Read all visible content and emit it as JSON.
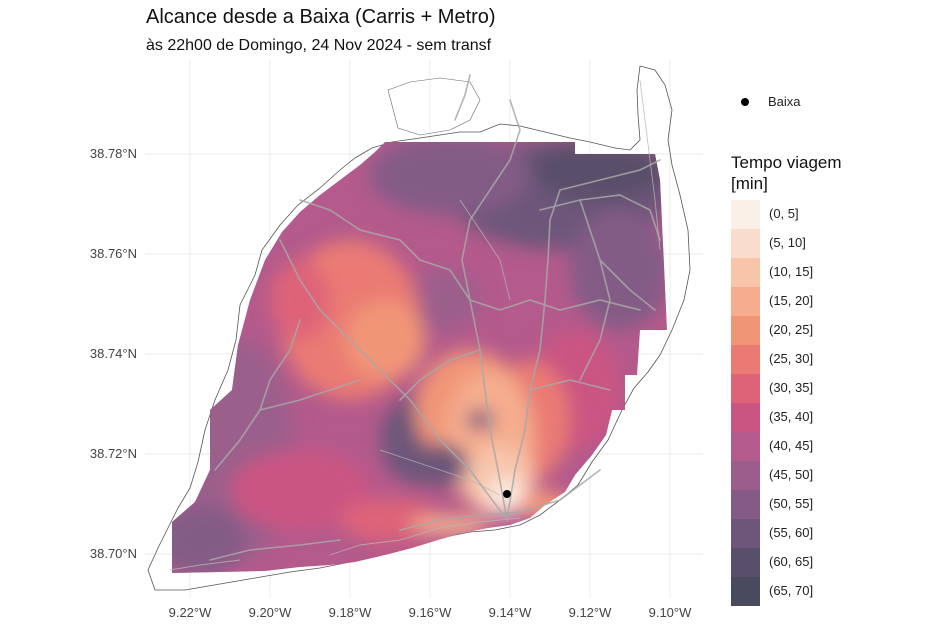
{
  "title": "Alcance desde a Baixa (Carris + Metro)",
  "subtitle": "às 22h00 de Domingo, 24 Nov 2024 - sem transf",
  "axes": {
    "y_ticks": [
      "38.78°N",
      "38.76°N",
      "38.74°N",
      "38.72°N",
      "38.70°N"
    ],
    "x_ticks": [
      "9.22°W",
      "9.20°W",
      "9.18°W",
      "9.16°W",
      "9.14°W",
      "9.12°W",
      "9.10°W"
    ]
  },
  "point_legend": {
    "label": "Baixa"
  },
  "legend": {
    "title_line1": "Tempo viagem",
    "title_line2": "[min]",
    "items": [
      {
        "label": "(0, 5]",
        "color": "#fbf0e8"
      },
      {
        "label": "(5, 10]",
        "color": "#f9dccb"
      },
      {
        "label": "(10, 15]",
        "color": "#f8c5ab"
      },
      {
        "label": "(15, 20]",
        "color": "#f5ad8e"
      },
      {
        "label": "(20, 25]",
        "color": "#f19577"
      },
      {
        "label": "(25, 30]",
        "color": "#ea7a73"
      },
      {
        "label": "(30, 35]",
        "color": "#de6379"
      },
      {
        "label": "(35, 40]",
        "color": "#cb5582"
      },
      {
        "label": "(40, 45]",
        "color": "#b45a8c"
      },
      {
        "label": "(45, 50]",
        "color": "#9b5e8c"
      },
      {
        "label": "(50, 55]",
        "color": "#835b86"
      },
      {
        "label": "(55, 60]",
        "color": "#6d5679"
      },
      {
        "label": "(60, 65]",
        "color": "#5a4f6a"
      },
      {
        "label": "(65, 70]",
        "color": "#494a5e"
      }
    ]
  },
  "colors": {
    "grid": "#ebebeb",
    "roads": "#a8a8a8",
    "outline": "#555555"
  }
}
